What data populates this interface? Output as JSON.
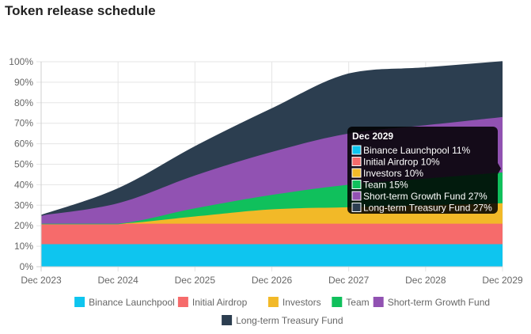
{
  "page": {
    "title": "Token release schedule"
  },
  "chart_data": {
    "type": "area",
    "stacked": true,
    "title": "Token release schedule",
    "xlabel": "",
    "ylabel": "",
    "ylim": [
      0,
      100
    ],
    "y_ticks": [
      "0%",
      "10%",
      "20%",
      "30%",
      "40%",
      "50%",
      "60%",
      "70%",
      "80%",
      "90%",
      "100%"
    ],
    "x_ticks": [
      "Dec 2023",
      "Dec 2024",
      "Dec 2025",
      "Dec 2026",
      "Dec 2027",
      "Dec 2028",
      "Dec 2029"
    ],
    "x": [
      0,
      1,
      2,
      3,
      4,
      5,
      6
    ],
    "grid": true,
    "legend_position": "bottom",
    "series": [
      {
        "name": "Binance Launchpool",
        "color": "#0ec5ef",
        "values": [
          11,
          11,
          11,
          11,
          11,
          11,
          11
        ]
      },
      {
        "name": "Initial Airdrop",
        "color": "#f66b6b",
        "values": [
          10,
          10,
          10,
          10,
          10,
          10,
          10
        ]
      },
      {
        "name": "Investors",
        "color": "#f2b928",
        "values": [
          0,
          0,
          3.5,
          7,
          8,
          9,
          10
        ]
      },
      {
        "name": "Team",
        "color": "#10c05c",
        "values": [
          0,
          0,
          4,
          7,
          11,
          13,
          15
        ]
      },
      {
        "name": "Short-term Growth Fund",
        "color": "#9152b2",
        "values": [
          4,
          10,
          16,
          21,
          25,
          26,
          27
        ]
      },
      {
        "name": "Long-term Treasury Fund",
        "color": "#2c3e50",
        "values": [
          0,
          7,
          14,
          21,
          29,
          28,
          27
        ]
      }
    ],
    "tooltip": {
      "title": "Dec 2029",
      "items": [
        "Binance Launchpool 11%",
        "Initial Airdrop 10%",
        "Investors 10%",
        "Team 15%",
        "Short-term Growth Fund 27%",
        "Long-term Treasury Fund 27%"
      ]
    }
  }
}
